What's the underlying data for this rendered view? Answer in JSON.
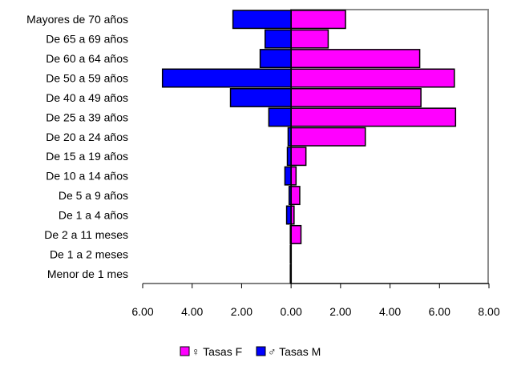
{
  "chart_data": {
    "type": "bar",
    "orientation": "horizontal",
    "categories": [
      "Mayores de 70 años",
      "De 65 a 69 años",
      "De 60 a 64 años",
      "De 50 a 59 años",
      "De 40 a 49 años",
      "De 25 a 39 años",
      "De 20 a 24 años",
      "De 15 a 19 años",
      "De 10 a 14 años",
      "De 5 a 9 años",
      "De 1 a 4 años",
      "De 2 a 11 meses",
      "De 1 a 2 meses",
      "Menor de 1 mes"
    ],
    "series": [
      {
        "name": "♀ Tasas F",
        "color": "#ff00ff",
        "values": [
          2.2,
          1.5,
          5.2,
          6.6,
          5.25,
          6.65,
          3.0,
          0.6,
          0.2,
          0.35,
          0.12,
          0.4,
          0.0,
          0.0
        ]
      },
      {
        "name": "♂ Tasas M",
        "color": "#0000ff",
        "values": [
          2.35,
          1.05,
          1.25,
          5.2,
          2.45,
          0.9,
          0.12,
          0.15,
          0.25,
          0.08,
          0.18,
          0.03,
          0.03,
          0.03
        ]
      }
    ],
    "xticks": [
      "6.00",
      "4.00",
      "2.00",
      "0.00",
      "2.00",
      "4.00",
      "6.00",
      "8.00"
    ],
    "xlim": [
      -6,
      8
    ],
    "legend": {
      "placement": "bottom",
      "entries": [
        "♀ Tasas F",
        "♂ Tasas M"
      ]
    },
    "grid": false
  }
}
